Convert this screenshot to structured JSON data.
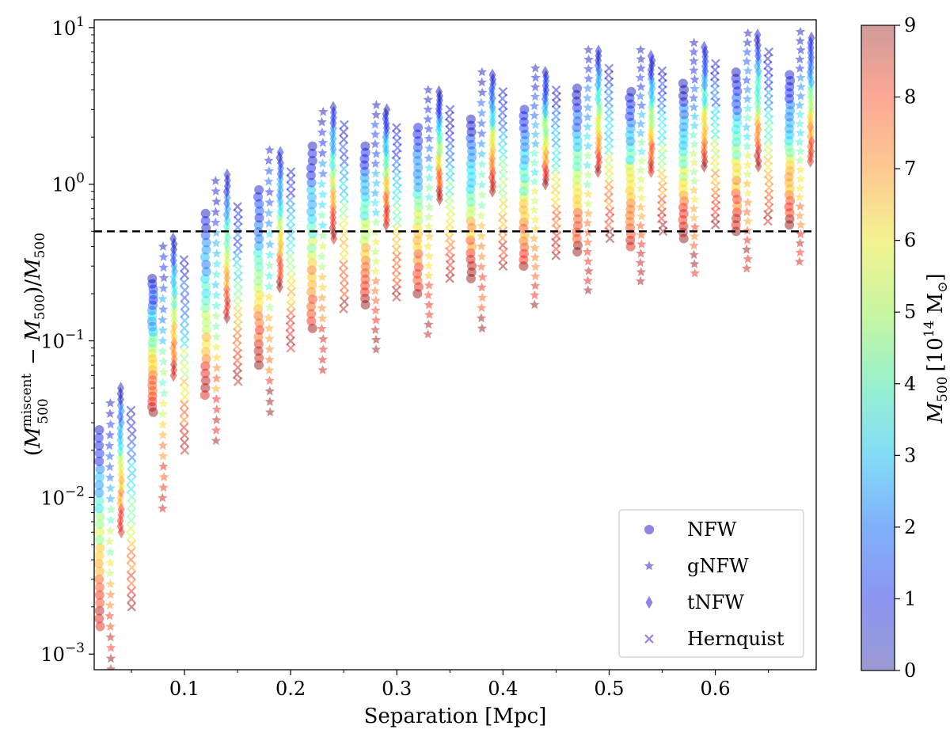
{
  "chart_data": {
    "type": "scatter",
    "title": "",
    "xlabel": "Separation [Mpc]",
    "ylabel": "(M_500^miscent − M_500)/M_500",
    "ylabel_parts": {
      "open": "(",
      "m1": "M",
      "sup1": "miscent",
      "sub1": "500",
      "minus": " − ",
      "m2": "M",
      "sub2": "500",
      "close": ")/",
      "m3": "M",
      "sub3": "500"
    },
    "xlim": [
      0.015,
      0.695
    ],
    "ylim_log10": [
      -3.1,
      1.05
    ],
    "yscale": "log",
    "x_ticks": [
      {
        "value": 0.1,
        "label": "0.1"
      },
      {
        "value": 0.2,
        "label": "0.2"
      },
      {
        "value": 0.3,
        "label": "0.3"
      },
      {
        "value": 0.4,
        "label": "0.4"
      },
      {
        "value": 0.5,
        "label": "0.5"
      },
      {
        "value": 0.6,
        "label": "0.6"
      }
    ],
    "y_ticks": [
      {
        "exp": -3,
        "label_base": "10",
        "label_exp": "−3"
      },
      {
        "exp": -2,
        "label_base": "10",
        "label_exp": "−2"
      },
      {
        "exp": -1,
        "label_base": "10",
        "label_exp": "−1"
      },
      {
        "exp": 0,
        "label_base": "10",
        "label_exp": "0"
      },
      {
        "exp": 1,
        "label_base": "10",
        "label_exp": "1"
      }
    ],
    "threshold_line": {
      "y": 0.5,
      "style": "dashed",
      "color": "#000000"
    },
    "offsets_mpc": {
      "NFW": -0.015,
      "gNFW": -0.005,
      "tNFW": 0.005,
      "Hernquist": 0.015
    },
    "separations_mpc": [
      0.035,
      0.085,
      0.135,
      0.185,
      0.235,
      0.285,
      0.335,
      0.385,
      0.435,
      0.485,
      0.535,
      0.585,
      0.635,
      0.685
    ],
    "series": [
      {
        "name": "NFW",
        "marker": "circle",
        "min": [
          0.0015,
          0.035,
          0.045,
          0.07,
          0.12,
          0.17,
          0.2,
          0.25,
          0.3,
          0.37,
          0.4,
          0.45,
          0.5,
          0.55
        ],
        "max": [
          0.027,
          0.25,
          0.65,
          0.92,
          1.75,
          1.75,
          2.3,
          2.6,
          3.0,
          4.1,
          3.9,
          4.4,
          5.2,
          5.0
        ]
      },
      {
        "name": "gNFW",
        "marker": "star",
        "min": [
          0.0008,
          0.0085,
          0.023,
          0.035,
          0.065,
          0.088,
          0.11,
          0.12,
          0.17,
          0.21,
          0.24,
          0.27,
          0.29,
          0.32
        ],
        "max": [
          0.04,
          0.4,
          1.05,
          1.65,
          2.9,
          3.2,
          4.0,
          5.2,
          5.5,
          7.2,
          7.2,
          8.0,
          9.2,
          9.4
        ]
      },
      {
        "name": "tNFW",
        "marker": "diamond",
        "min": [
          0.006,
          0.06,
          0.14,
          0.22,
          0.45,
          0.55,
          0.8,
          0.9,
          1.0,
          1.2,
          1.2,
          1.3,
          1.3,
          1.4
        ],
        "max": [
          0.05,
          0.45,
          1.15,
          1.6,
          3.1,
          3.0,
          3.9,
          5.0,
          5.2,
          7.1,
          6.6,
          7.5,
          9.0,
          8.6
        ]
      },
      {
        "name": "Hernquist",
        "marker": "cross",
        "min": [
          0.002,
          0.02,
          0.055,
          0.09,
          0.16,
          0.19,
          0.25,
          0.3,
          0.35,
          0.45,
          0.5,
          0.55,
          0.58,
          0.7
        ],
        "max": [
          0.036,
          0.33,
          0.72,
          1.2,
          2.4,
          2.3,
          3.0,
          3.9,
          4.0,
          5.5,
          5.3,
          5.9,
          7.0,
          6.8
        ]
      }
    ],
    "legend": {
      "position": "lower-right",
      "entries": [
        "NFW",
        "gNFW",
        "tNFW",
        "Hernquist"
      ],
      "color": "#6a5bd9"
    },
    "colorbar": {
      "label_base": "M",
      "label_sub": "500",
      "label_units_open": "[10",
      "label_units_exp": "14",
      "label_units_close": " M",
      "label_sun": "⊙",
      "label_bracket": "]",
      "min": 0,
      "max": 9,
      "ticks": [
        {
          "value": 0,
          "label": "0"
        },
        {
          "value": 1,
          "label": "1"
        },
        {
          "value": 2,
          "label": "2"
        },
        {
          "value": 3,
          "label": "3"
        },
        {
          "value": 4,
          "label": "4"
        },
        {
          "value": 5,
          "label": "5"
        },
        {
          "value": 6,
          "label": "6"
        },
        {
          "value": 7,
          "label": "7"
        },
        {
          "value": 8,
          "label": "8"
        },
        {
          "value": 9,
          "label": "9"
        }
      ],
      "colormap": "jet-alpha",
      "stops": [
        "#9a9ad2",
        "#8c96f2",
        "#7fb0fb",
        "#82dcf6",
        "#98f1cc",
        "#c8f6a0",
        "#f4f390",
        "#fdc890",
        "#fca896",
        "#d09a98"
      ]
    }
  }
}
